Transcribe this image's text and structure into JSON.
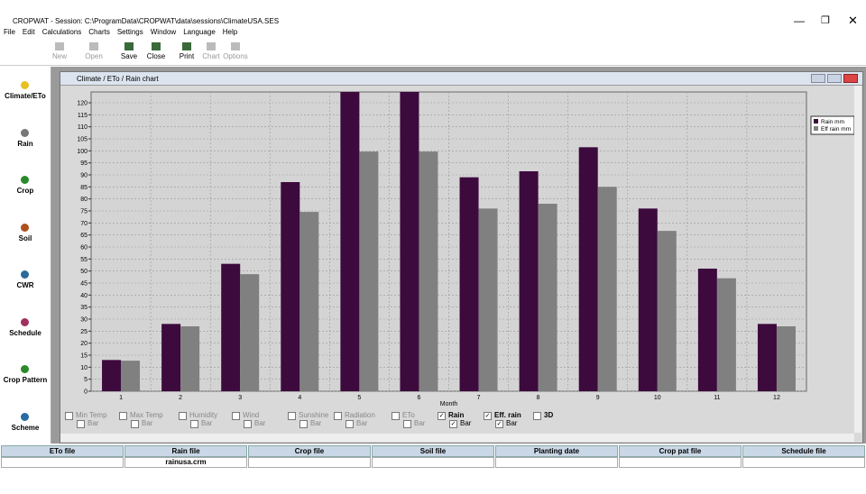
{
  "window": {
    "title": "CROPWAT - Session: C:\\ProgramData\\CROPWAT\\data\\sessions\\ClimateUSA.SES"
  },
  "menu": [
    "File",
    "Edit",
    "Calculations",
    "Charts",
    "Settings",
    "Window",
    "Language",
    "Help"
  ],
  "toolbar": [
    {
      "label": "New",
      "enabled": false
    },
    {
      "label": "Open",
      "enabled": false
    },
    {
      "label": "Save",
      "enabled": true
    },
    {
      "label": "Close",
      "enabled": true
    },
    {
      "label": "Print",
      "enabled": true
    },
    {
      "label": "Chart",
      "enabled": false
    },
    {
      "label": "Options",
      "enabled": false
    }
  ],
  "sidebar": [
    "Climate/ETo",
    "Rain",
    "Crop",
    "Soil",
    "CWR",
    "Schedule",
    "Crop Pattern",
    "Scheme"
  ],
  "child_window": {
    "title": "Climate / ETo / Rain chart"
  },
  "chart_data": {
    "type": "bar",
    "x_label": "Month",
    "categories": [
      "1",
      "2",
      "3",
      "4",
      "5",
      "6",
      "7",
      "8",
      "9",
      "10",
      "11",
      "12"
    ],
    "series": [
      {
        "name": "Rain mm",
        "color": "#3d0a3d",
        "values": [
          13,
          28,
          53,
          87,
          130,
          130,
          89,
          91.5,
          101.5,
          76,
          51,
          28
        ]
      },
      {
        "name": "Eff rain mm",
        "color": "#808080",
        "values": [
          12.7,
          27,
          48.7,
          74.6,
          99.7,
          99.7,
          76,
          78,
          85,
          66.7,
          47,
          27
        ]
      }
    ],
    "ylim": [
      0,
      124.5
    ],
    "yticks": [
      0,
      5,
      10,
      15,
      20,
      25,
      30,
      35,
      40,
      45,
      50,
      55,
      60,
      65,
      70,
      75,
      80,
      85,
      90,
      95,
      100,
      105,
      110,
      115,
      120
    ],
    "grid": true,
    "legend": "outside-right"
  },
  "chart_options": [
    {
      "name": "Min Temp",
      "sub": "Bar",
      "enabled": false,
      "checked": false
    },
    {
      "name": "Max Temp",
      "sub": "Bar",
      "enabled": false,
      "checked": false
    },
    {
      "name": "Humidity",
      "sub": "Bar",
      "enabled": false,
      "checked": false
    },
    {
      "name": "Wind",
      "sub": "Bar",
      "enabled": false,
      "checked": false
    },
    {
      "name": "Sunshine",
      "sub": "Bar",
      "enabled": false,
      "checked": false
    },
    {
      "name": "Radiation",
      "sub": "Bar",
      "enabled": false,
      "checked": false
    },
    {
      "name": "ETo",
      "sub": "Bar",
      "enabled": false,
      "checked": false
    },
    {
      "name": "Rain",
      "sub": "Bar",
      "enabled": true,
      "checked": true
    },
    {
      "name": "Eff. rain",
      "sub": "Bar",
      "enabled": true,
      "checked": true
    },
    {
      "name": "3D",
      "enabled": true,
      "checked": false
    }
  ],
  "status_bar": {
    "headers": [
      "ETo file",
      "Rain file",
      "Crop file",
      "Soil file",
      "Planting date",
      "Crop pat file",
      "Schedule file"
    ],
    "rain_file": "rainusa.crm"
  }
}
